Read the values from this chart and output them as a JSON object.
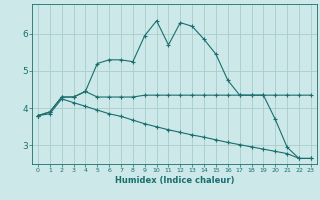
{
  "xlabel": "Humidex (Indice chaleur)",
  "background_color": "#cce8e8",
  "grid_color": "#aacccc",
  "line_color": "#1a6e6e",
  "x_values": [
    0,
    1,
    2,
    3,
    4,
    5,
    6,
    7,
    8,
    9,
    10,
    11,
    12,
    13,
    14,
    15,
    16,
    17,
    18,
    19,
    20,
    21,
    22,
    23
  ],
  "series1": [
    3.8,
    3.9,
    4.3,
    4.3,
    4.45,
    5.2,
    5.3,
    5.3,
    5.25,
    5.95,
    6.35,
    5.7,
    6.3,
    6.2,
    5.85,
    5.45,
    4.75,
    4.35,
    4.35,
    4.35,
    3.7,
    2.95,
    2.65,
    2.65
  ],
  "series2": [
    3.8,
    3.9,
    4.3,
    4.3,
    4.45,
    4.3,
    4.3,
    4.3,
    4.3,
    4.35,
    4.35,
    4.35,
    4.35,
    4.35,
    4.35,
    4.35,
    4.35,
    4.35,
    4.35,
    4.35,
    4.35,
    4.35,
    4.35,
    4.35
  ],
  "series3": [
    3.8,
    3.85,
    4.25,
    4.15,
    4.05,
    3.95,
    3.85,
    3.78,
    3.68,
    3.58,
    3.5,
    3.42,
    3.35,
    3.28,
    3.22,
    3.15,
    3.08,
    3.02,
    2.96,
    2.9,
    2.84,
    2.78,
    2.65,
    2.65
  ],
  "ylim": [
    2.5,
    6.8
  ],
  "xlim": [
    -0.5,
    23.5
  ],
  "yticks": [
    3,
    4,
    5,
    6
  ],
  "xticks": [
    0,
    1,
    2,
    3,
    4,
    5,
    6,
    7,
    8,
    9,
    10,
    11,
    12,
    13,
    14,
    15,
    16,
    17,
    18,
    19,
    20,
    21,
    22,
    23
  ]
}
